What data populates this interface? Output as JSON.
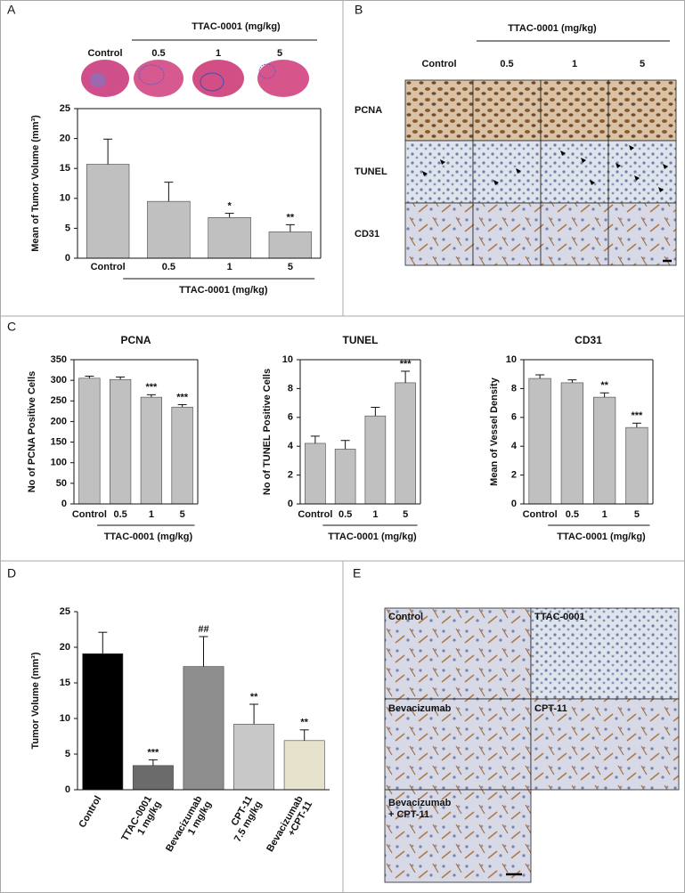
{
  "panels": {
    "labels": [
      "A",
      "B",
      "C",
      "D",
      "E"
    ]
  },
  "panel_a_images": {
    "header": "TTAC-0001 (mg/kg)",
    "labels": [
      "Control",
      "0.5",
      "1",
      "5"
    ]
  },
  "panel_b": {
    "header": "TTAC-0001 (mg/kg)",
    "columns": [
      "Control",
      "0.5",
      "1",
      "5"
    ],
    "rows": [
      "PCNA",
      "TUNEL",
      "CD31"
    ]
  },
  "panel_e": {
    "labels": [
      [
        "Control"
      ],
      [
        "TTAC-0001"
      ],
      [
        "Bevacizumab"
      ],
      [
        "CPT-11"
      ],
      [
        "Bevacizumab",
        "+ CPT-11"
      ]
    ]
  },
  "chart_data": [
    {
      "type": "bar",
      "y_label": "Mean of Tumor Volume (mm³)",
      "x_label": "TTAC-0001 (mg/kg)",
      "categories": [
        "Control",
        "0.5",
        "1",
        "5"
      ],
      "values": [
        15.7,
        9.5,
        6.8,
        4.4
      ],
      "errors": [
        4.2,
        3.2,
        0.7,
        1.2
      ],
      "annotations": [
        null,
        null,
        "*",
        "**"
      ],
      "color": "#c0c0c0",
      "ylim": [
        0,
        25
      ],
      "yticks": [
        0,
        5,
        10,
        15,
        20,
        25
      ]
    },
    {
      "type": "bar",
      "title": "PCNA",
      "y_label": "No of PCNA  Positive Cells",
      "x_label": "TTAC-0001 (mg/kg)",
      "categories": [
        "Control",
        "0.5",
        "1",
        "5"
      ],
      "values": [
        305,
        302,
        259,
        235
      ],
      "errors": [
        5,
        6,
        6,
        6
      ],
      "annotations": [
        null,
        null,
        "***",
        "***"
      ],
      "color": "#c0c0c0",
      "ylim": [
        0,
        350
      ],
      "yticks": [
        0,
        50,
        100,
        150,
        200,
        250,
        300,
        350
      ]
    },
    {
      "type": "bar",
      "title": "TUNEL",
      "y_label": "No of TUNEL  Positive Cells",
      "x_label": "TTAC-0001 (mg/kg)",
      "categories": [
        "Control",
        "0.5",
        "1",
        "5"
      ],
      "values": [
        4.2,
        3.8,
        6.1,
        8.4
      ],
      "errors": [
        0.5,
        0.6,
        0.6,
        0.8
      ],
      "annotations": [
        null,
        null,
        null,
        "***"
      ],
      "color": "#c0c0c0",
      "ylim": [
        0,
        10
      ],
      "yticks": [
        0,
        2,
        4,
        6,
        8,
        10
      ]
    },
    {
      "type": "bar",
      "title": "CD31",
      "y_label": "Mean of Vessel Density",
      "x_label": "TTAC-0001 (mg/kg)",
      "categories": [
        "Control",
        "0.5",
        "1",
        "5"
      ],
      "values": [
        8.7,
        8.4,
        7.4,
        5.3
      ],
      "errors": [
        0.25,
        0.2,
        0.3,
        0.3
      ],
      "annotations": [
        null,
        null,
        "**",
        "***"
      ],
      "color": "#c0c0c0",
      "ylim": [
        0,
        10
      ],
      "yticks": [
        0,
        2,
        4,
        6,
        8,
        10
      ]
    },
    {
      "type": "bar",
      "y_label": "Tumor Volume  (mm³)",
      "categories": [
        [
          "Control"
        ],
        [
          "TTAC-0001",
          "1 mg/kg"
        ],
        [
          "Bevacizumab",
          "1 mg/kg"
        ],
        [
          "CPT-11",
          "7.5 mg/kg"
        ],
        [
          "Bevacizumab",
          "+CPT-11"
        ]
      ],
      "values": [
        19.1,
        3.4,
        17.3,
        9.2,
        6.9
      ],
      "errors": [
        3.0,
        0.8,
        4.2,
        2.8,
        1.5
      ],
      "annotations": [
        null,
        "***",
        "##",
        "**",
        "**"
      ],
      "colors": [
        "#000000",
        "#6b6b6b",
        "#8e8e8e",
        "#c8c8c8",
        "#e6e2cc"
      ],
      "ylim": [
        0,
        25
      ],
      "yticks": [
        0,
        5,
        10,
        15,
        20,
        25
      ]
    }
  ]
}
